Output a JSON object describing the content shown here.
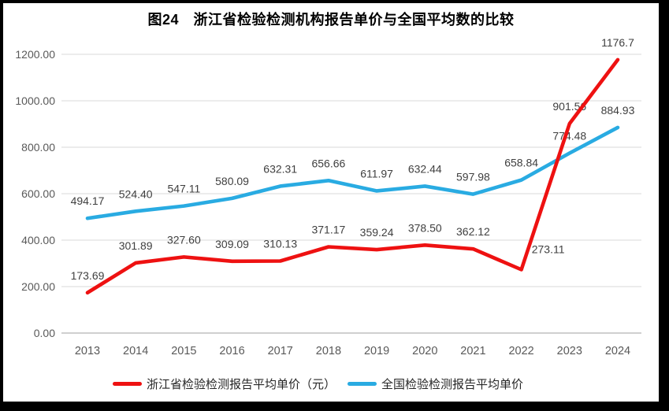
{
  "title": "图24　浙江省检验检测机构报告单价与全国平均数的比较",
  "chart_data": {
    "type": "line",
    "title": "图24　浙江省检验检测机构报告单价与全国平均数的比较",
    "categories": [
      "2013",
      "2014",
      "2015",
      "2016",
      "2017",
      "2018",
      "2019",
      "2020",
      "2021",
      "2022",
      "2023",
      "2024"
    ],
    "series": [
      {
        "name": "浙江省检验检测报告平均单价（元）",
        "color": "#ee1111",
        "values": [
          173.69,
          301.89,
          327.6,
          309.09,
          310.13,
          371.17,
          359.24,
          378.5,
          362.12,
          273.11,
          901.56,
          1176.7
        ],
        "labels": [
          "173.69",
          "301.89",
          "327.60",
          "309.09",
          "310.13",
          "371.17",
          "359.24",
          "378.50",
          "362.12",
          "273.11",
          "901.56",
          "1176.7"
        ]
      },
      {
        "name": "全国检验检测报告平均单价",
        "color": "#29abe2",
        "values": [
          494.17,
          524.4,
          547.11,
          580.09,
          632.31,
          656.66,
          611.97,
          632.44,
          597.98,
          658.84,
          774.48,
          884.93
        ],
        "labels": [
          "494.17",
          "524.40",
          "547.11",
          "580.09",
          "632.31",
          "656.66",
          "611.97",
          "632.44",
          "597.98",
          "658.84",
          "774.48",
          "884.93"
        ]
      }
    ],
    "ylim": [
      0,
      1200
    ],
    "ytick_step": 200,
    "yticks": [
      "0.00",
      "200.00",
      "400.00",
      "600.00",
      "800.00",
      "1000.00",
      "1200.00"
    ],
    "grid": true,
    "legend_position": "bottom"
  },
  "legend": {
    "items": [
      {
        "label": "浙江省检验检测报告平均单价（元）",
        "color": "#ee1111"
      },
      {
        "label": "全国检验检测报告平均单价",
        "color": "#29abe2"
      }
    ]
  },
  "colors": {
    "background": "#ffffff",
    "frame": "#000000",
    "gridline": "#d9d9d9",
    "axis_line": "#bfbfbf",
    "tick_text": "#595959",
    "data_label": "#3f3f3f"
  }
}
